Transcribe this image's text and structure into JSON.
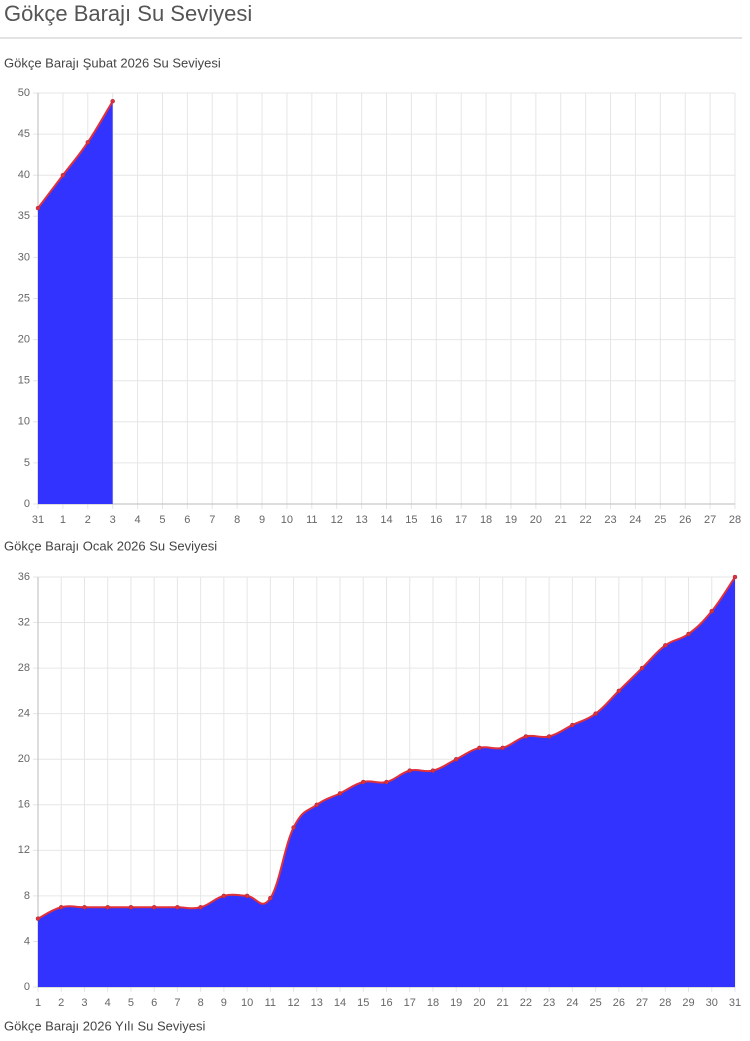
{
  "page_title": "Gökçe Barajı Su Seviyesi",
  "footer_heading": "Gökçe Barajı 2026 Yılı Su Seviyesi",
  "chart_data": [
    {
      "type": "area",
      "title": "Gökçe Barajı Şubat 2026 Su Seviyesi",
      "categories": [
        "31",
        "1",
        "2",
        "3",
        "4",
        "5",
        "6",
        "7",
        "8",
        "9",
        "10",
        "11",
        "12",
        "13",
        "14",
        "15",
        "16",
        "17",
        "18",
        "19",
        "20",
        "21",
        "22",
        "23",
        "24",
        "25",
        "26",
        "27",
        "28"
      ],
      "values": [
        36,
        40,
        44,
        49,
        null,
        null,
        null,
        null,
        null,
        null,
        null,
        null,
        null,
        null,
        null,
        null,
        null,
        null,
        null,
        null,
        null,
        null,
        null,
        null,
        null,
        null,
        null,
        null,
        null
      ],
      "color": "#e0303a",
      "fill": "#3333ff",
      "ylim": [
        0,
        50
      ],
      "yticks": [
        0,
        5,
        10,
        15,
        20,
        25,
        30,
        35,
        40,
        45,
        50
      ],
      "grid": true
    },
    {
      "type": "area",
      "title": "Gökçe Barajı Ocak 2026 Su Seviyesi",
      "categories": [
        "1",
        "2",
        "3",
        "4",
        "5",
        "6",
        "7",
        "8",
        "9",
        "10",
        "11",
        "12",
        "13",
        "14",
        "15",
        "16",
        "17",
        "18",
        "19",
        "20",
        "21",
        "22",
        "23",
        "24",
        "25",
        "26",
        "27",
        "28",
        "29",
        "30",
        "31"
      ],
      "values": [
        6,
        7,
        7,
        7,
        7,
        7,
        7,
        7,
        8,
        8,
        7.8,
        14,
        16,
        17,
        18,
        18,
        19,
        19,
        20,
        21,
        21,
        22,
        22,
        23,
        24,
        26,
        28,
        30,
        31,
        33,
        36
      ],
      "color": "#e0303a",
      "fill": "#3333ff",
      "ylim": [
        0,
        36
      ],
      "yticks": [
        0,
        4,
        8,
        12,
        16,
        20,
        24,
        28,
        32,
        36
      ],
      "grid": true
    }
  ]
}
